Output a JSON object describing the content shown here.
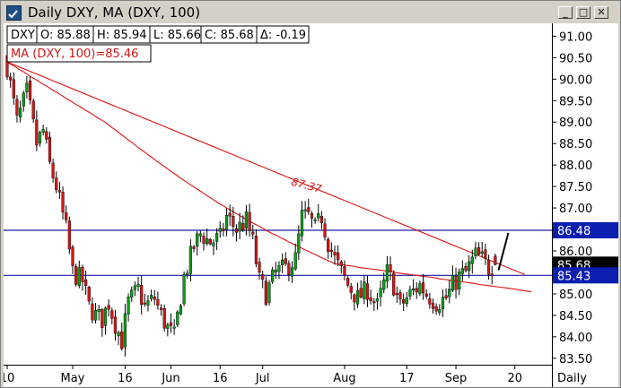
{
  "window": {
    "title": "Daily DXY, MA (DXY, 100)",
    "minimize": "_",
    "maximize": "□",
    "close": "✕"
  },
  "info": {
    "symbol": "DXY",
    "open": "O: 85.88",
    "high": "H: 85.94",
    "low": "L: 85.66",
    "close": "C: 85.68",
    "change": "Δ: -0.19",
    "ma_label": "MA (DXY, 100)=85.46"
  },
  "colors": {
    "up": "#0e9b1b",
    "down": "#d11717",
    "ma": "#e01010",
    "hline": "#1a1aa8",
    "label_bg": "#0b1fb0"
  },
  "chart_data": {
    "type": "candlestick",
    "ylim": [
      83.35,
      91.3
    ],
    "y_ticks": [
      "91.00",
      "90.50",
      "90.00",
      "89.50",
      "89.00",
      "88.50",
      "88.00",
      "87.50",
      "87.00",
      "86.50",
      "86.00",
      "85.50",
      "85.00",
      "84.50",
      "84.00",
      "83.50"
    ],
    "x_ticks": [
      "10",
      "May",
      "16",
      "Jun",
      "16",
      "Jul",
      "Aug",
      "17",
      "Sep",
      "20"
    ],
    "x_tick_days": [
      0,
      20,
      36,
      50,
      65,
      78,
      103,
      122,
      137,
      155
    ],
    "period_label": "Daily",
    "horizontal_levels": [
      {
        "value": 86.48,
        "label": "86.48"
      },
      {
        "value": 85.43,
        "label": "85.43"
      }
    ],
    "current_label": "85.68",
    "annotation": {
      "text": "87.37",
      "value": 87.37
    },
    "candles": [],
    "ma_series": [],
    "trendline": [],
    "projection": []
  }
}
